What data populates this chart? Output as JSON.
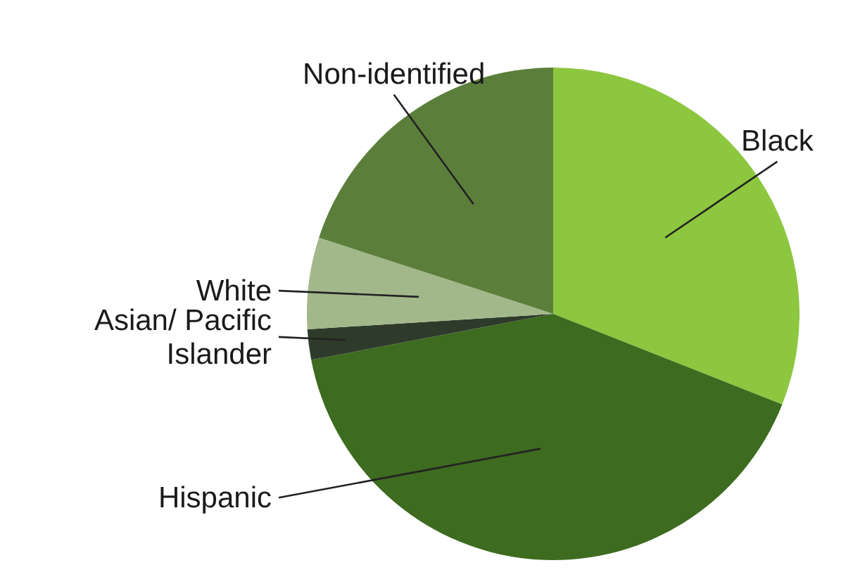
{
  "chart_data": {
    "type": "pie",
    "categories": [
      "Black",
      "Hispanic",
      "Asian/ Pacific Islander",
      "White",
      "Non-identified"
    ],
    "values": [
      31,
      41,
      2,
      6,
      20
    ],
    "colors": [
      "#8dc63f",
      "#3d6b1f",
      "#2e3b2a",
      "#a3b88a",
      "#5b7f3b"
    ]
  }
}
